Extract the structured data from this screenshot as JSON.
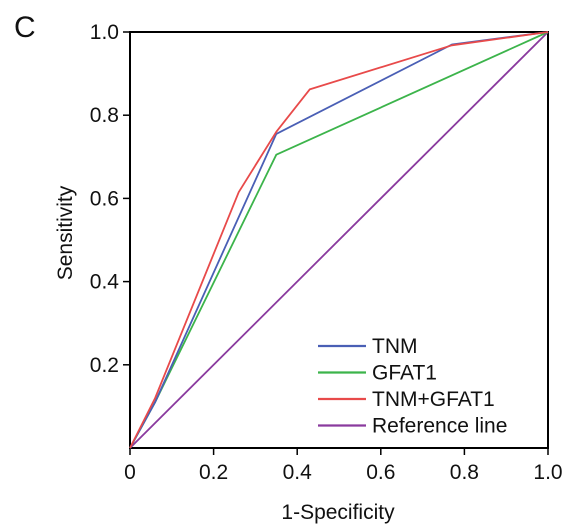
{
  "panel_label": "C",
  "chart_data": {
    "type": "line",
    "title": "",
    "xlabel": "1-Specificity",
    "ylabel": "Sensitivity",
    "xlim": [
      0,
      1
    ],
    "ylim": [
      0,
      1
    ],
    "x_ticks": [
      "0",
      "0.2",
      "0.4",
      "0.6",
      "0.8",
      "1.0"
    ],
    "y_ticks": [
      "0.2",
      "0.4",
      "0.6",
      "0.8",
      "1.0"
    ],
    "grid": false,
    "legend_position": "bottom-right",
    "series": [
      {
        "name": "TNM",
        "color": "#4a5fb5",
        "points": [
          [
            0,
            0
          ],
          [
            0.06,
            0.11
          ],
          [
            0.35,
            0.755
          ],
          [
            0.77,
            0.97
          ],
          [
            1.0,
            1.0
          ]
        ]
      },
      {
        "name": "GFAT1",
        "color": "#3cb44b",
        "points": [
          [
            0,
            0
          ],
          [
            0.06,
            0.11
          ],
          [
            0.35,
            0.705
          ],
          [
            1.0,
            1.0
          ]
        ]
      },
      {
        "name": "TNM+GFAT1",
        "color": "#e84a4a",
        "points": [
          [
            0,
            0
          ],
          [
            0.06,
            0.12
          ],
          [
            0.26,
            0.615
          ],
          [
            0.35,
            0.76
          ],
          [
            0.43,
            0.862
          ],
          [
            0.77,
            0.968
          ],
          [
            1.0,
            1.0
          ]
        ]
      },
      {
        "name": "Reference line",
        "color": "#8a3a9e",
        "points": [
          [
            0,
            0
          ],
          [
            1.0,
            1.0
          ]
        ]
      }
    ]
  }
}
